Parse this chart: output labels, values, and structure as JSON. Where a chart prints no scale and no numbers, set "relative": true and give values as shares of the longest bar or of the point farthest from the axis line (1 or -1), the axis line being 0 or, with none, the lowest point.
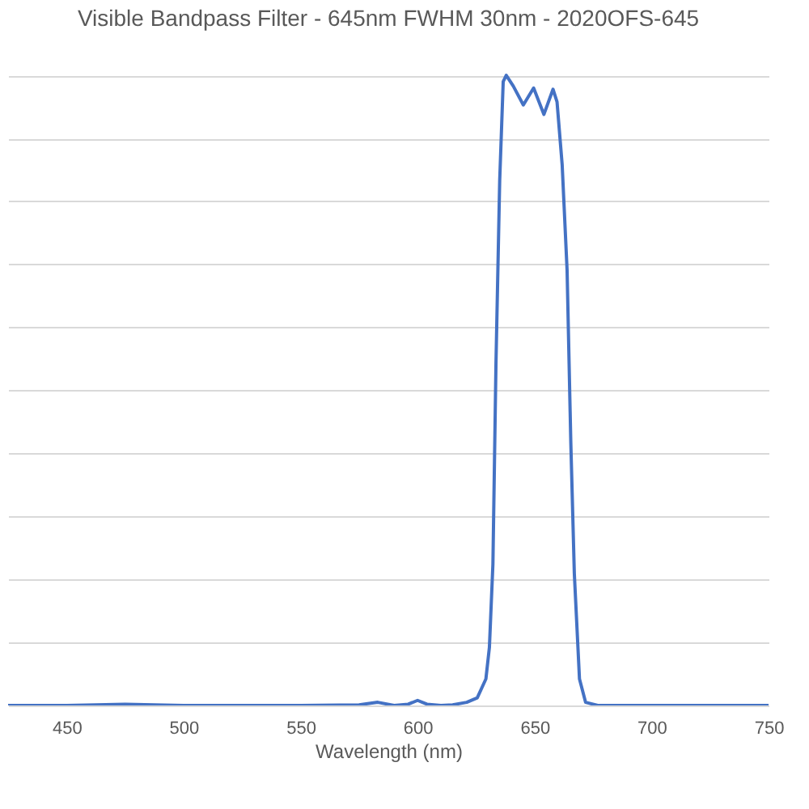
{
  "chart_data": {
    "type": "line",
    "title": "Visible Bandpass Filter - 645nm FWHM 30nm - 2020OFS-645",
    "xlabel": "Wavelength (nm)",
    "relative": true,
    "grid": "y",
    "x": [
      425,
      450,
      475,
      500,
      550,
      575,
      583,
      590,
      596,
      600,
      604,
      610,
      615,
      621,
      625.5,
      629.2,
      630.7,
      632.2,
      633.5,
      635.1,
      636.6,
      637.9,
      640.9,
      645.2,
      649.6,
      654.0,
      657.9,
      659.6,
      661.8,
      663.9,
      665.5,
      667.0,
      669.2,
      671.8,
      677,
      690,
      720,
      750
    ],
    "series": [
      {
        "color": "#4472c4",
        "values": [
          0,
          0,
          0.002,
          0,
          0,
          0.001,
          0.005,
          0,
          0.002,
          0.008,
          0.002,
          0,
          0.001,
          0.005,
          0.012,
          0.042,
          0.092,
          0.224,
          0.541,
          0.833,
          0.99,
          1,
          0.983,
          0.953,
          0.98,
          0.938,
          0.978,
          0.958,
          0.858,
          0.691,
          0.416,
          0.209,
          0.042,
          0.005,
          0,
          0,
          0,
          0
        ]
      }
    ],
    "xlim": [
      425,
      750
    ],
    "xticks": [
      450,
      500,
      550,
      600,
      650,
      700,
      750
    ]
  }
}
